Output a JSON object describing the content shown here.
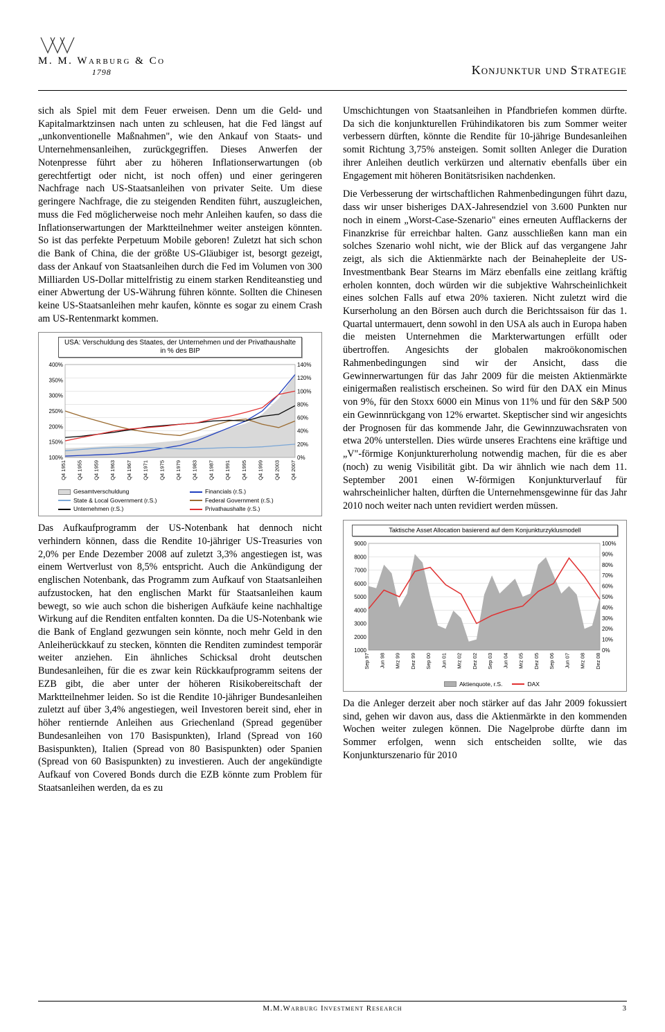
{
  "logo": {
    "name": "M. M. Warburg & Co",
    "year": "1798"
  },
  "pub_title": "Konjunktur und Strategie",
  "left_text": "sich als Spiel mit dem Feuer erweisen. Denn um die Geld- und Kapitalmarktzinsen nach unten zu schleusen, hat die Fed längst auf „unkonventionelle Maßnahmen\", wie den Ankauf von Staats- und Unternehmensanleihen, zurückgegriffen. Dieses Anwerfen der Notenpresse führt aber zu höheren Inflationserwartungen (ob gerechtfertigt oder nicht, ist noch offen) und einer geringeren Nachfrage nach US-Staatsanleihen von privater Seite. Um diese geringere Nachfrage, die zu steigenden Renditen führt, auszugleichen, muss die Fed möglicherweise noch mehr Anleihen kaufen, so dass die Inflationserwartungen der Marktteilnehmer weiter ansteigen könnten. So ist das perfekte Perpetuum Mobile geboren! Zuletzt hat sich schon die Bank of China, die der größte US-Gläubiger ist, besorgt gezeigt, dass der Ankauf von Staatsanleihen durch die Fed im Volumen von 300 Milliarden US-Dollar mittelfristig zu einem starken Renditeanstieg und einer Abwertung der US-Währung führen könnte. Sollten die Chinesen keine US-Staatsanleihen mehr kaufen, könnte es sogar zu einem Crash am US-Rentenmarkt kommen.",
  "left_text2": "Das Aufkaufprogramm der US-Notenbank hat dennoch nicht verhindern können, dass die Rendite 10-jähriger US-Treasuries von 2,0% per Ende Dezember 2008 auf zuletzt 3,3% angestiegen ist, was einem Wertverlust von 8,5% entspricht. Auch die Ankündigung der englischen Notenbank, das Programm zum Aufkauf von Staatsanleihen aufzustocken, hat den englischen Markt für Staatsanleihen kaum bewegt, so wie auch schon die bisherigen Aufkäufe keine nachhaltige Wirkung auf die Renditen entfalten konnten. Da die US-Notenbank wie die Bank of England gezwungen sein könnte, noch mehr Geld in den Anleiherückkauf zu stecken, könnten die Renditen zumindest temporär weiter anziehen. Ein ähnliches Schicksal droht deutschen Bundesanleihen, für die es zwar kein Rückkaufprogramm seitens der EZB gibt, die aber unter der höheren Risikobereitschaft der Marktteilnehmer leiden. So ist die Rendite 10-jähriger Bundesanleihen zuletzt auf über 3,4% angestiegen, weil Investoren bereit sind, eher in höher rentiernde Anleihen aus Griechenland (Spread gegenüber Bundesanleihen von 170 Basispunkten), Irland (Spread von 160 Basispunkten), Italien (Spread von 80 Basispunkten) oder Spanien (Spread von 60 Basispunkten) zu investieren. Auch der angekündigte Aufkauf von Covered Bonds durch die EZB könnte zum Problem für Staatsanleihen werden, da es zu",
  "right_text1": "Umschichtungen von Staatsanleihen in Pfandbriefen kommen dürfte. Da sich die konjunkturellen Frühindikatoren bis zum Sommer weiter verbessern dürften, könnte die Rendite für 10-jährige Bundesanleihen somit Richtung 3,75% ansteigen. Somit sollten Anleger die Duration ihrer Anleihen deutlich verkürzen und alternativ ebenfalls über ein Engagement mit höheren Bonitätsrisiken nachdenken.",
  "right_text2": "Die Verbesserung der wirtschaftlichen Rahmenbedingungen führt dazu, dass wir unser bisheriges DAX-Jahresendziel von 3.600 Punkten nur noch in einem „Worst-Case-Szenario\" eines erneuten Aufflackerns der Finanzkrise für erreichbar halten. Ganz ausschließen kann man ein solches Szenario wohl nicht, wie der Blick auf das vergangene Jahr zeigt, als sich die Aktienmärkte nach der Beinahepleite der US-Investmentbank Bear Stearns im März ebenfalls eine zeitlang kräftig erholen konnten, doch würden wir die subjektive Wahrscheinlichkeit eines solchen Falls auf etwa 20% taxieren. Nicht zuletzt wird die Kurserholung an den Börsen auch durch die Berichtssaison für das 1. Quartal untermauert, denn sowohl in den USA als auch in Europa haben die meisten Unternehmen die Markterwartungen erfüllt oder übertroffen. Angesichts der globalen makroökonomischen Rahmenbedingungen sind wir der Ansicht, dass die Gewinnerwartungen für das Jahr 2009 für die meisten Aktienmärkte einigermaßen realistisch erscheinen. So wird für den DAX ein Minus von 9%, für den Stoxx 6000 ein Minus von 11% und für den S&P 500 ein Gewinnrückgang von 12% erwartet. Skeptischer sind wir angesichts der Prognosen für das kommende Jahr, die Gewinnzuwachsraten von etwa 20% unterstellen. Dies würde unseres Erachtens eine kräftige und „V\"-förmige Konjunkturerholung notwendig machen, für die es aber (noch) zu wenig Visibilität gibt. Da wir ähnlich wie nach dem 11. September 2001 einen W-förmigen Konjunkturverlauf für wahrscheinlicher halten, dürften die Unternehmensgewinne für das Jahr 2010 noch weiter nach unten revidiert werden müssen.",
  "right_text3": "Da die Anleger derzeit aber noch stärker auf das Jahr 2009 fokussiert sind, gehen wir davon aus, dass die Aktienmärkte in den kommenden Wochen weiter zulegen können. Die Nagelprobe dürfte dann im Sommer erfolgen, wenn sich entscheiden sollte, wie das Konjunkturszenario für 2010",
  "chart1": {
    "title": "USA: Verschuldung des Staates, der Unternehmen und der Privathaushalte in % des BIP",
    "x_labels": [
      "Q4 1951",
      "Q4 1955",
      "Q4 1959",
      "Q4 1963",
      "Q4 1967",
      "Q4 1971",
      "Q4 1975",
      "Q4 1979",
      "Q4 1983",
      "Q4 1987",
      "Q4 1991",
      "Q4 1995",
      "Q4 1999",
      "Q4 2003",
      "Q4 2007"
    ],
    "left_ticks": [
      "100%",
      "150%",
      "200%",
      "250%",
      "300%",
      "350%",
      "400%"
    ],
    "right_ticks": [
      "0%",
      "20%",
      "40%",
      "60%",
      "80%",
      "100%",
      "120%",
      "140%"
    ],
    "legend": [
      {
        "label": "Gesamtverschuldung",
        "type": "box",
        "color": "#d9d9d9"
      },
      {
        "label": "Financials (r.S.)",
        "type": "line",
        "color": "#1f3fbf"
      },
      {
        "label": "State & Local Government (r.S.)",
        "type": "line",
        "color": "#7aa6d6"
      },
      {
        "label": "Federal Government (r.S.)",
        "type": "line",
        "color": "#9a6a2f"
      },
      {
        "label": "Unternehmen (r.S.)",
        "type": "line",
        "color": "#000000"
      },
      {
        "label": "Privathaushalte (r.S.)",
        "type": "line",
        "color": "#e03030"
      }
    ],
    "series": {
      "gesamt": [
        130,
        132,
        135,
        138,
        140,
        145,
        150,
        155,
        165,
        180,
        195,
        210,
        240,
        290,
        370
      ],
      "financials": [
        2,
        3,
        4,
        5,
        7,
        10,
        14,
        18,
        25,
        35,
        45,
        55,
        70,
        95,
        125
      ],
      "state_local": [
        10,
        12,
        14,
        15,
        15,
        15,
        14,
        13,
        13,
        14,
        15,
        15,
        16,
        18,
        20
      ],
      "federal": [
        70,
        62,
        55,
        48,
        42,
        38,
        35,
        33,
        40,
        48,
        55,
        58,
        50,
        45,
        55
      ],
      "unternehmen": [
        30,
        32,
        35,
        38,
        42,
        46,
        48,
        50,
        52,
        55,
        56,
        55,
        62,
        65,
        78
      ],
      "privat": [
        25,
        30,
        35,
        40,
        43,
        45,
        47,
        50,
        52,
        58,
        62,
        68,
        75,
        95,
        100
      ]
    },
    "left_ylim": [
      100,
      400
    ],
    "right_ylim": [
      0,
      140
    ],
    "colors": {
      "gesamt": "#d9d9d9",
      "financials": "#1f3fbf",
      "state_local": "#7aa6d6",
      "federal": "#9a6a2f",
      "unternehmen": "#000000",
      "privat": "#e03030",
      "grid": "#cfcfcf",
      "border": "#888888"
    }
  },
  "chart2": {
    "title": "Taktische Asset Allocation basierend auf dem Konjunkturzyklusmodell",
    "x_labels": [
      "Sep 97",
      "Jun 98",
      "Mrz 99",
      "Dez 99",
      "Sep 00",
      "Jun 01",
      "Mrz 02",
      "Dez 02",
      "Sep 03",
      "Jun 04",
      "Mrz 05",
      "Dez 05",
      "Sep 06",
      "Jun 07",
      "Mrz 08",
      "Dez 08"
    ],
    "left_ticks": [
      "1000",
      "2000",
      "3000",
      "4000",
      "5000",
      "6000",
      "7000",
      "8000",
      "9000"
    ],
    "right_ticks": [
      "0%",
      "10%",
      "20%",
      "30%",
      "40%",
      "50%",
      "60%",
      "70%",
      "80%",
      "90%",
      "100%"
    ],
    "legend": [
      {
        "label": "Aktienquote, r.S.",
        "type": "box",
        "color": "#b0b0b0"
      },
      {
        "label": "DAX",
        "type": "line",
        "color": "#e03030"
      }
    ],
    "dax": [
      4100,
      5500,
      5000,
      6900,
      7200,
      5900,
      5200,
      3000,
      3600,
      4000,
      4300,
      5400,
      6000,
      7900,
      6500,
      4800
    ],
    "quote": [
      60,
      80,
      40,
      90,
      50,
      20,
      30,
      10,
      70,
      60,
      50,
      80,
      70,
      60,
      20,
      50
    ],
    "left_ylim": [
      1000,
      9000
    ],
    "right_ylim": [
      0,
      100
    ],
    "colors": {
      "quote": "#b0b0b0",
      "dax": "#e03030",
      "grid": "#cfcfcf",
      "border": "#888888"
    }
  },
  "footer": {
    "text": "M.M.Warburg Investment Research",
    "page": "3"
  }
}
